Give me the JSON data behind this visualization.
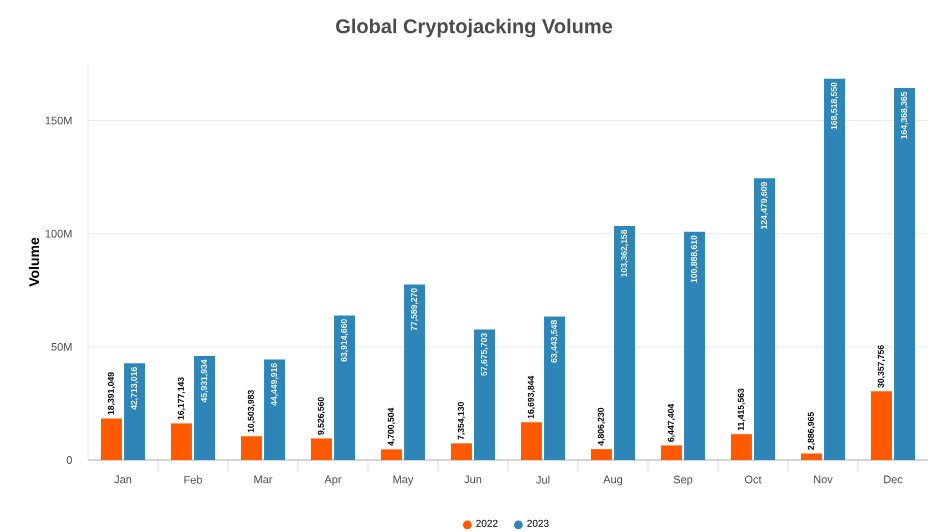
{
  "chart_data": {
    "type": "bar",
    "title": "Global Cryptojacking Volume",
    "ylabel": "Volume",
    "categories": [
      "Jan",
      "Feb",
      "Mar",
      "Apr",
      "May",
      "Jun",
      "Jul",
      "Aug",
      "Sep",
      "Oct",
      "Nov",
      "Dec"
    ],
    "series": [
      {
        "name": "2022",
        "color": "#ff5a00",
        "values": [
          18391049,
          16177143,
          10503983,
          9526560,
          4700504,
          7354130,
          16693844,
          4806230,
          6447404,
          11415563,
          2886965,
          30357756
        ],
        "value_labels": [
          "18,391,049",
          "16,177,143",
          "10,503,983",
          "9,526,560",
          "4,700,504",
          "7,354,130",
          "16,693,844",
          "4,806,230",
          "6,447,404",
          "11,415,563",
          "2,886,965",
          "30,357,756"
        ]
      },
      {
        "name": "2023",
        "color": "#2e86b8",
        "values": [
          42713016,
          45931934,
          44449916,
          63914660,
          77589270,
          57675703,
          63443548,
          103362158,
          100888610,
          124479609,
          168518550,
          164368365
        ],
        "value_labels": [
          "42,713,016",
          "45,931,934",
          "44,449,916",
          "63,914,660",
          "77,589,270",
          "57,675,703",
          "63,443,548",
          "103,362,158",
          "100,888,610",
          "124,479,609",
          "168,518,550",
          "164,368,365"
        ]
      }
    ],
    "ylim": [
      0,
      175000000
    ],
    "yticks": [
      0,
      {
        "value": 50000000,
        "label": "50M"
      },
      {
        "value": 100000000,
        "label": "100M"
      },
      {
        "value": 150000000,
        "label": "150M"
      }
    ],
    "grid": "y",
    "legend": "bottom"
  }
}
